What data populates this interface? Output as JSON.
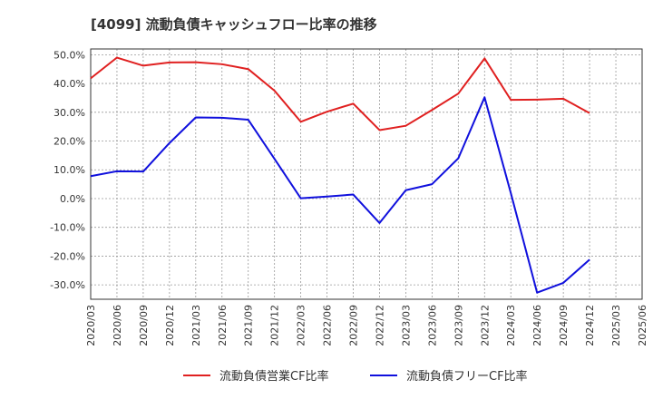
{
  "chart_data": {
    "type": "line",
    "title": "[4099]  流動負債キャッシュフロー比率の推移",
    "xlabel": "",
    "ylabel": "",
    "ylim": [
      -35,
      52
    ],
    "yticks": [
      50,
      40,
      30,
      20,
      10,
      0,
      -10,
      -20,
      -30
    ],
    "ytick_labels": [
      "50.0%",
      "40.0%",
      "30.0%",
      "20.0%",
      "10.0%",
      "0.0%",
      "-10.0%",
      "-20.0%",
      "-30.0%"
    ],
    "categories": [
      "2020/03",
      "2020/06",
      "2020/09",
      "2020/12",
      "2021/03",
      "2021/06",
      "2021/09",
      "2021/12",
      "2022/03",
      "2022/06",
      "2022/09",
      "2022/12",
      "2023/03",
      "2023/06",
      "2023/09",
      "2023/12",
      "2024/03",
      "2024/06",
      "2024/09",
      "2024/12",
      "2025/03",
      "2025/06"
    ],
    "grid": true,
    "legend_position": "bottom",
    "series": [
      {
        "name": "流動負債営業CF比率",
        "color": "#e02020",
        "values": [
          41.8,
          49.0,
          46.2,
          47.3,
          47.4,
          46.7,
          45.0,
          37.5,
          26.7,
          30.2,
          33.0,
          23.8,
          25.3,
          30.8,
          36.5,
          48.7,
          34.3,
          34.4,
          34.7,
          29.7,
          null,
          null
        ]
      },
      {
        "name": "流動負債フリーCF比率",
        "color": "#1010dd",
        "values": [
          7.8,
          9.5,
          9.4,
          19.3,
          28.2,
          28.1,
          27.4,
          13.8,
          0.1,
          0.7,
          1.4,
          -8.5,
          2.9,
          5.0,
          14.0,
          35.2,
          1.9,
          -32.7,
          -29.3,
          -21.2,
          null,
          null
        ]
      }
    ]
  }
}
